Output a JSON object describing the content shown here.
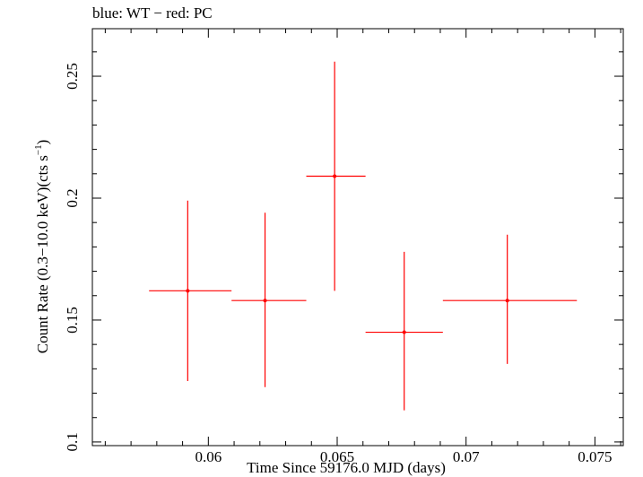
{
  "chart_data": {
    "type": "scatter",
    "title": "blue: WT − red: PC",
    "xlabel": "Time Since 59176.0 MJD (days)",
    "ylabel": "Count Rate (0.3−10.0 keV)(cts s",
    "ylabel_sup": "−1",
    "ylabel_tail": ")",
    "xlim": [
      0.0555,
      0.0761
    ],
    "ylim": [
      0.0985,
      0.2695
    ],
    "x_ticks": [
      0.06,
      0.065,
      0.07,
      0.075
    ],
    "x_tick_labels": [
      "0.06",
      "0.065",
      "0.07",
      "0.075"
    ],
    "y_ticks": [
      0.1,
      0.15,
      0.2,
      0.25
    ],
    "y_tick_labels": [
      "0.1",
      "0.15",
      "0.2",
      "0.25"
    ],
    "grid": false,
    "series": [
      {
        "name": "PC",
        "color": "#ff0000",
        "points": [
          {
            "x": 0.0592,
            "xerr_low": 0.0577,
            "xerr_high": 0.0609,
            "y": 0.162,
            "yerr_low": 0.125,
            "yerr_high": 0.199
          },
          {
            "x": 0.0622,
            "xerr_low": 0.0609,
            "xerr_high": 0.0638,
            "y": 0.158,
            "yerr_low": 0.1225,
            "yerr_high": 0.194
          },
          {
            "x": 0.0649,
            "xerr_low": 0.0638,
            "xerr_high": 0.0661,
            "y": 0.209,
            "yerr_low": 0.162,
            "yerr_high": 0.256
          },
          {
            "x": 0.0676,
            "xerr_low": 0.0661,
            "xerr_high": 0.0691,
            "y": 0.145,
            "yerr_low": 0.113,
            "yerr_high": 0.178
          },
          {
            "x": 0.0716,
            "xerr_low": 0.0691,
            "xerr_high": 0.0743,
            "y": 0.158,
            "yerr_low": 0.132,
            "yerr_high": 0.185
          }
        ]
      }
    ]
  }
}
